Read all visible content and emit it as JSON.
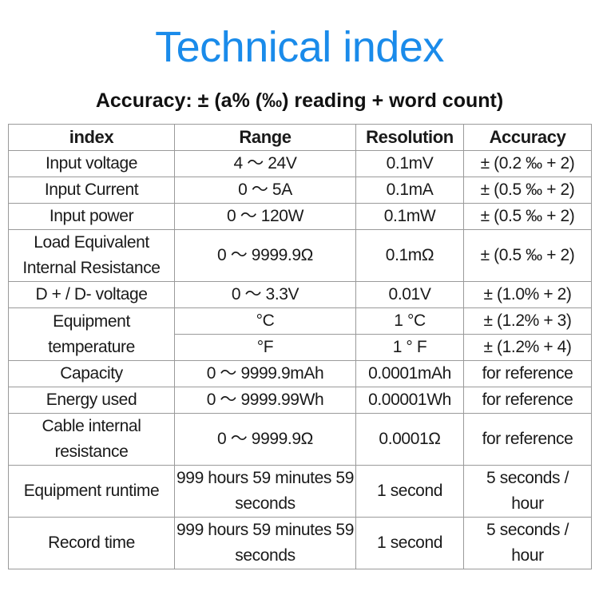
{
  "title": "Technical index",
  "subtitle": "Accuracy: ± (a% (‰) reading + word count)",
  "accent_color": "#1a8bea",
  "table": {
    "headers": [
      "index",
      "Range",
      "Resolution",
      "Accuracy"
    ],
    "rows": [
      [
        "Input voltage",
        "4 ～ 24V",
        "0.1mV",
        "± (0.2 ‰ + 2)"
      ],
      [
        "Input Current",
        "0 ～ 5A",
        "0.1mA",
        "± (0.5 ‰ + 2)"
      ],
      [
        "Input power",
        "0 ～ 120W",
        "0.1mW",
        "± (0.5 ‰ + 2)"
      ],
      [
        "Load Equivalent Internal Resistance",
        "0 ～ 9999.9Ω",
        "0.1mΩ",
        "± (0.5 ‰ + 2)"
      ],
      [
        "D + / D- voltage",
        "0 ～ 3.3V",
        "0.01V",
        "± (1.0% + 2)"
      ],
      [
        "Equipment temperature",
        "°C",
        "1 °C",
        "± (1.2% + 3)"
      ],
      [
        "",
        "°F",
        "1 ° F",
        "± (1.2% + 4)"
      ],
      [
        "Capacity",
        "0 ～ 9999.9mAh",
        "0.0001mAh",
        "for reference"
      ],
      [
        "Energy used",
        "0 ～ 9999.99Wh",
        "0.00001Wh",
        "for reference"
      ],
      [
        "Cable internal resistance",
        "0 ～ 9999.9Ω",
        "0.0001Ω",
        "for reference"
      ],
      [
        "Equipment runtime",
        "999 hours 59 minutes 59 seconds",
        "1 second",
        "5 seconds / hour"
      ],
      [
        "Record time",
        "999 hours 59 minutes 59 seconds",
        "1 second",
        "5 seconds / hour"
      ]
    ]
  }
}
